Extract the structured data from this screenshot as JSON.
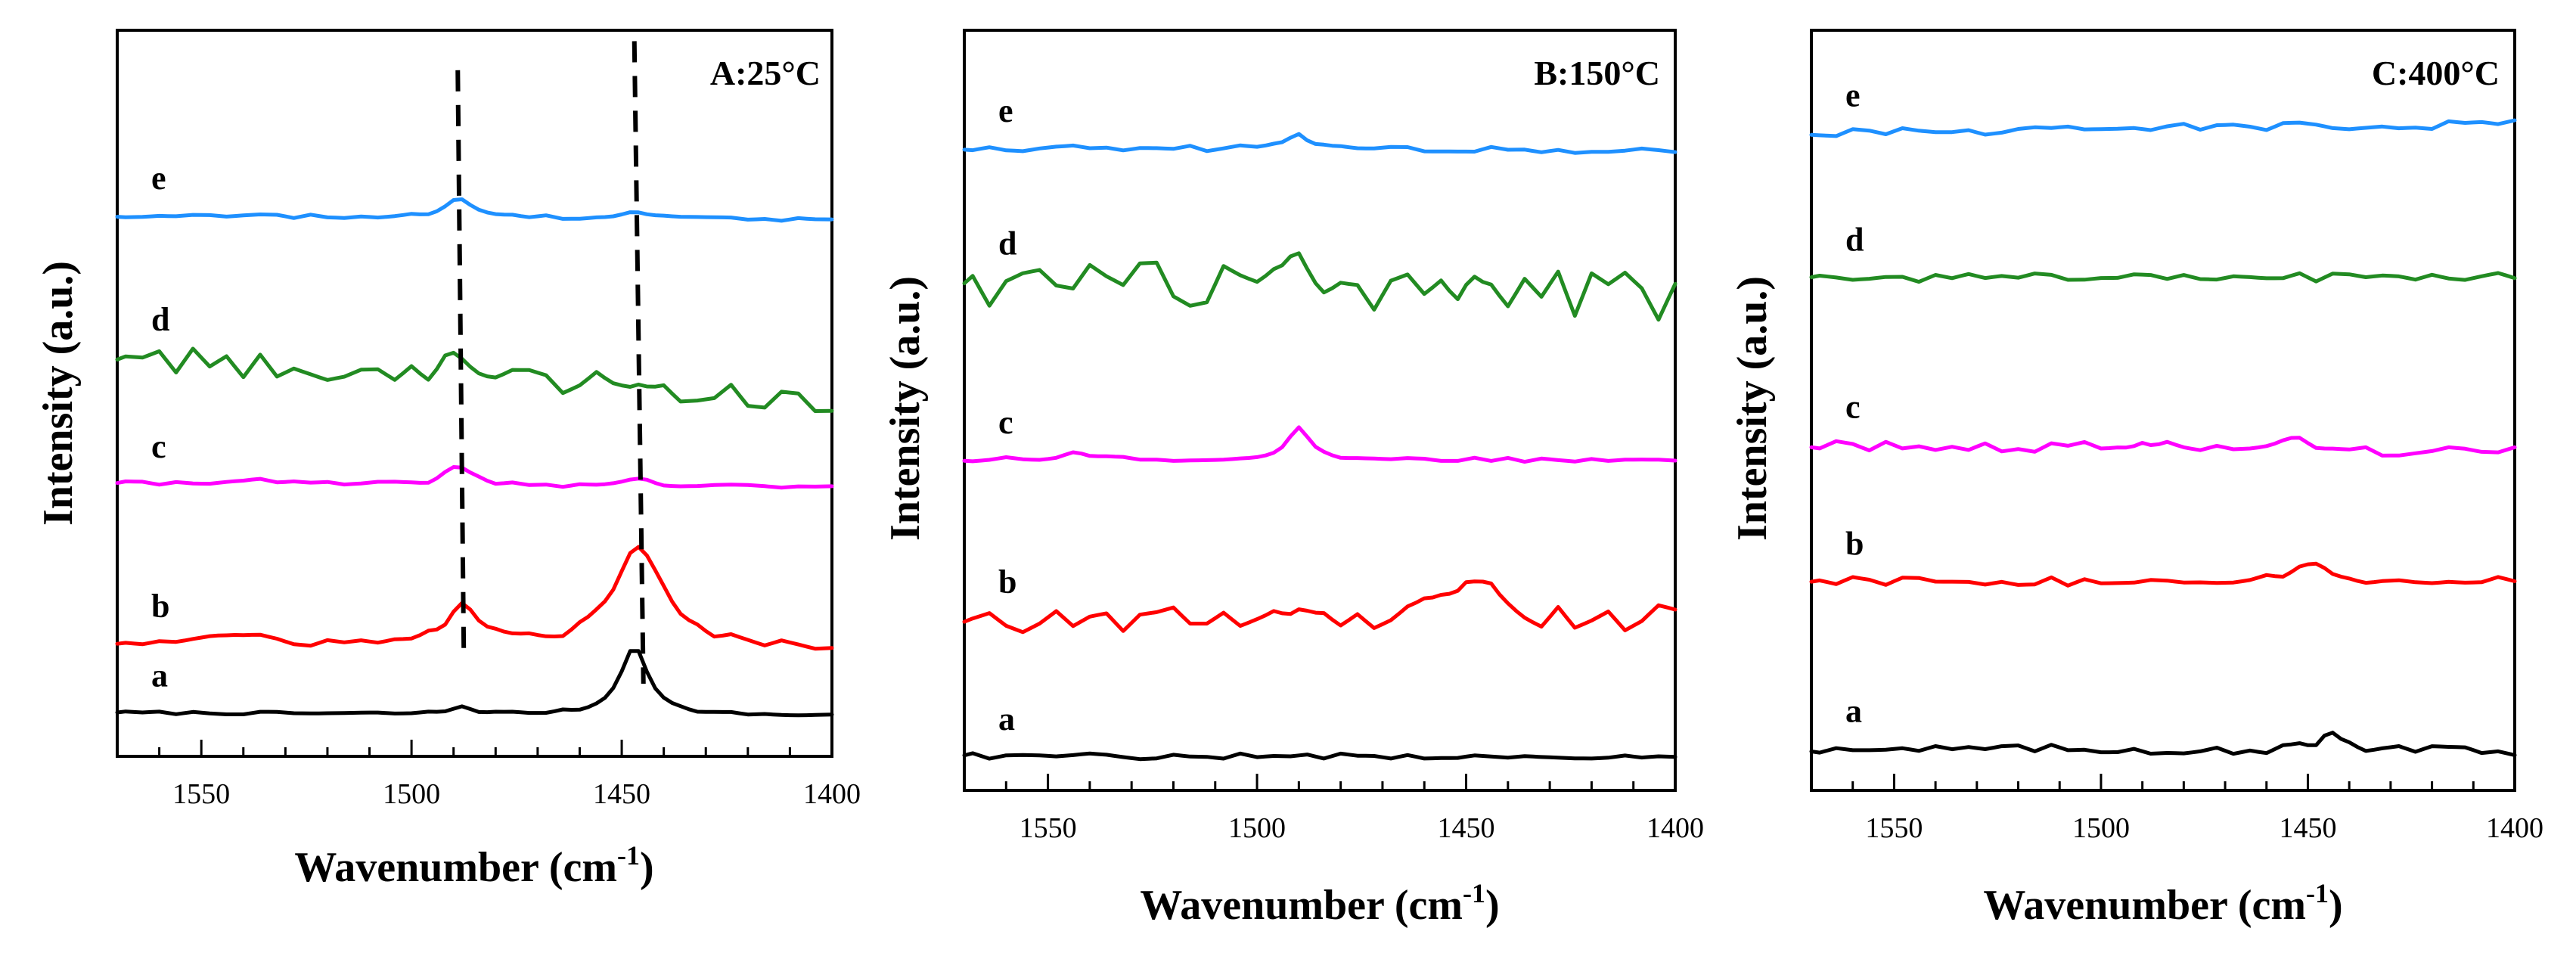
{
  "chart_data": [
    {
      "type": "line",
      "title": "A:25°C",
      "xlabel": "Wavenumber (cm",
      "xlabel_sup": "-1",
      "xlabel_close": ")",
      "ylabel": "Intensity (a.u.)",
      "xlim": [
        1570,
        1400
      ],
      "xticks": [
        1550,
        1500,
        1450,
        1400
      ],
      "markers": [
        1489,
        1447
      ],
      "series": [
        {
          "name": "a",
          "color": "#000000",
          "offset": 0.06,
          "peaks": [
            [
              1447,
              0.095,
              4
            ],
            [
              1488,
              0.01,
              3
            ]
          ],
          "noise": 0.002,
          "slope": -0.004
        },
        {
          "name": "b",
          "color": "#ff0000",
          "offset": 0.155,
          "peaks": [
            [
              1446,
              0.135,
              7
            ],
            [
              1488,
              0.06,
              4
            ],
            [
              1543,
              0.01,
              10
            ]
          ],
          "noise": 0.006,
          "slope": -0.005
        },
        {
          "name": "c",
          "color": "#ff00ff",
          "offset": 0.375,
          "peaks": [
            [
              1489,
              0.025,
              4
            ],
            [
              1447,
              0.01,
              4
            ],
            [
              1540,
              0.006,
              10
            ]
          ],
          "noise": 0.003,
          "slope": -0.004
        },
        {
          "name": "d",
          "color": "#228b22",
          "offset": 0.55,
          "peaks": [
            [
              1489,
              0.04,
              4
            ],
            [
              1447,
              0.02,
              4
            ]
          ],
          "noise": 0.018,
          "slope": -0.06
        },
        {
          "name": "e",
          "color": "#1e90ff",
          "offset": 0.745,
          "peaks": [
            [
              1489,
              0.025,
              4
            ],
            [
              1447,
              0.008,
              4
            ]
          ],
          "noise": 0.003,
          "slope": -0.006
        }
      ]
    },
    {
      "type": "line",
      "title": "B:150°C",
      "xlabel": "Wavenumber (cm",
      "xlabel_sup": "-1",
      "xlabel_close": ")",
      "ylabel": "Intensity (a.u.)",
      "xlim": [
        1570,
        1400
      ],
      "xticks": [
        1550,
        1500,
        1450,
        1400
      ],
      "markers": [],
      "series": [
        {
          "name": "a",
          "color": "#000000",
          "offset": 0.045,
          "peaks": [],
          "noise": 0.004,
          "slope": 0.0
        },
        {
          "name": "b",
          "color": "#ff0000",
          "offset": 0.225,
          "peaks": [
            [
              1449,
              0.06,
              6
            ],
            [
              1490,
              0.02,
              4
            ]
          ],
          "noise": 0.018,
          "slope": 0.0
        },
        {
          "name": "c",
          "color": "#ff00ff",
          "offset": 0.435,
          "peaks": [
            [
              1490,
              0.04,
              3
            ],
            [
              1543,
              0.008,
              6
            ]
          ],
          "noise": 0.003,
          "slope": 0.0
        },
        {
          "name": "d",
          "color": "#228b22",
          "offset": 0.67,
          "peaks": [
            [
              1490,
              0.04,
              3
            ],
            [
              1449,
              0.02,
              3
            ]
          ],
          "noise": 0.032,
          "slope": -0.02
        },
        {
          "name": "e",
          "color": "#1e90ff",
          "offset": 0.845,
          "peaks": [
            [
              1490,
              0.022,
              3
            ]
          ],
          "noise": 0.004,
          "slope": -0.003
        }
      ]
    },
    {
      "type": "line",
      "title": "C:400°C",
      "xlabel": "Wavenumber (cm",
      "xlabel_sup": "-1",
      "xlabel_close": ")",
      "ylabel": "Intensity (a.u.)",
      "xlim": [
        1570,
        1400
      ],
      "xticks": [
        1550,
        1500,
        1450,
        1400
      ],
      "markers": [],
      "series": [
        {
          "name": "a",
          "color": "#000000",
          "offset": 0.055,
          "peaks": [
            [
              1445,
              0.022,
              3
            ]
          ],
          "noise": 0.006,
          "slope": -0.003
        },
        {
          "name": "b",
          "color": "#ff0000",
          "offset": 0.275,
          "peaks": [
            [
              1448,
              0.02,
              6
            ]
          ],
          "noise": 0.006,
          "slope": 0.0
        },
        {
          "name": "c",
          "color": "#ff00ff",
          "offset": 0.455,
          "peaks": [
            [
              1490,
              0.012,
              3
            ],
            [
              1453,
              0.01,
              4
            ]
          ],
          "noise": 0.007,
          "slope": -0.01
        },
        {
          "name": "d",
          "color": "#228b22",
          "offset": 0.675,
          "peaks": [],
          "noise": 0.006,
          "slope": 0.0
        },
        {
          "name": "e",
          "color": "#1e90ff",
          "offset": 0.865,
          "peaks": [],
          "noise": 0.006,
          "slope": 0.012
        }
      ]
    }
  ]
}
